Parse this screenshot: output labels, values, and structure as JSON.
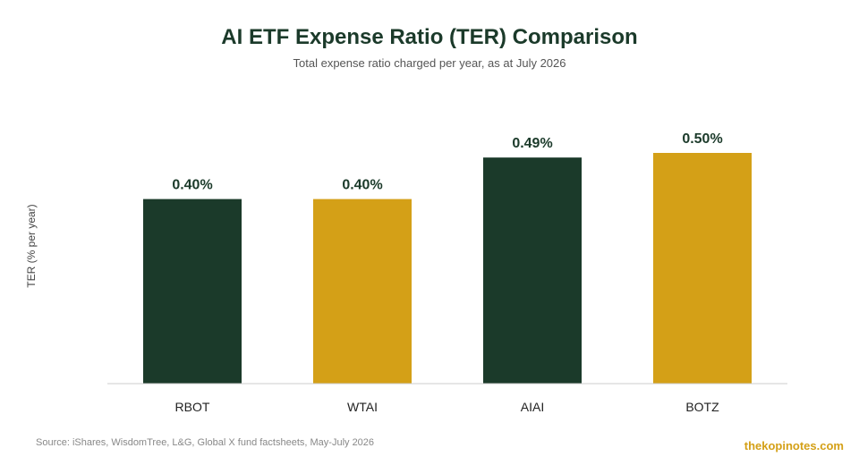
{
  "header": {
    "title": "AI ETF Expense Ratio (TER) Comparison",
    "subtitle": "Total expense ratio charged per year, as at July 2026"
  },
  "footer": {
    "source": "Source: iShares, WisdomTree, L&G, Global X fund factsheets, May-July 2026",
    "brand": "thekopinotes.com"
  },
  "colors": {
    "dark_green": "#1b3a2a",
    "gold": "#d4a017",
    "axis": "#cccccc"
  },
  "chart_data": {
    "type": "bar",
    "title": "AI ETF Expense Ratio (TER) Comparison",
    "subtitle": "Total expense ratio charged per year, as at July 2026",
    "xlabel": "",
    "ylabel": "TER (% per year)",
    "categories": [
      "RBOT",
      "WTAI",
      "AIAI",
      "BOTZ"
    ],
    "values": [
      0.4,
      0.4,
      0.49,
      0.5
    ],
    "value_labels": [
      "0.40%",
      "0.40%",
      "0.49%",
      "0.50%"
    ],
    "bar_colors": [
      "#1b3a2a",
      "#d4a017",
      "#1b3a2a",
      "#d4a017"
    ],
    "ylim": [
      0,
      0.5
    ],
    "grid": false,
    "legend": "none"
  }
}
